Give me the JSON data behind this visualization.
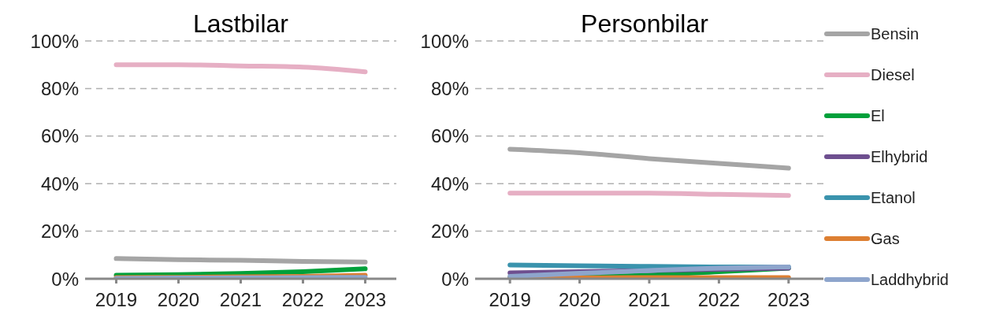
{
  "chart_data": [
    {
      "type": "line",
      "title": "Lastbilar",
      "categories": [
        "2019",
        "2020",
        "2021",
        "2022",
        "2023"
      ],
      "ylim": [
        0,
        100
      ],
      "yticks": [
        {
          "value": 0,
          "label": "0%"
        },
        {
          "value": 20,
          "label": "20%"
        },
        {
          "value": 40,
          "label": "40%"
        },
        {
          "value": 60,
          "label": "60%"
        },
        {
          "value": 80,
          "label": "80%"
        },
        {
          "value": 100,
          "label": "100%"
        }
      ],
      "grid": "y",
      "legend": false,
      "marker": "none",
      "series": [
        {
          "color": "#a5a5a5",
          "values": [
            8.5,
            8,
            7.8,
            7.3,
            7
          ]
        },
        {
          "color": "#e6afc4",
          "values": [
            90,
            90,
            89.5,
            89,
            87
          ]
        },
        {
          "color": "#00a03a",
          "values": [
            1.5,
            1.7,
            2.2,
            3,
            4.2
          ]
        },
        {
          "color": "#dd7f32",
          "values": [
            0.5,
            0.6,
            0.8,
            1,
            1.5
          ]
        },
        {
          "color": "#8ea5cc",
          "values": [
            0.2,
            0.3,
            0.4,
            0.5,
            0.6
          ]
        }
      ]
    },
    {
      "type": "line",
      "title": "Personbilar",
      "categories": [
        "2019",
        "2020",
        "2021",
        "2022",
        "2023"
      ],
      "ylim": [
        0,
        100
      ],
      "yticks": [
        {
          "value": 0,
          "label": "0%"
        },
        {
          "value": 20,
          "label": "20%"
        },
        {
          "value": 40,
          "label": "40%"
        },
        {
          "value": 60,
          "label": "60%"
        },
        {
          "value": 80,
          "label": "80%"
        },
        {
          "value": 100,
          "label": "100%"
        }
      ],
      "grid": "y",
      "legend": "right",
      "marker": "none",
      "series": [
        {
          "name": "Bensin",
          "color": "#a5a5a5",
          "values": [
            54.5,
            53,
            50.5,
            48.5,
            46.5
          ]
        },
        {
          "name": "Diesel",
          "color": "#e6afc4",
          "values": [
            36,
            36,
            36,
            35.5,
            35
          ]
        },
        {
          "name": "El",
          "color": "#00a03a",
          "values": [
            0.5,
            1,
            1.5,
            3,
            4.5
          ]
        },
        {
          "name": "Elhybrid",
          "color": "#6e4f8f",
          "values": [
            2.5,
            3,
            3.5,
            4,
            4.5
          ]
        },
        {
          "name": "Etanol",
          "color": "#3a93ad",
          "values": [
            5.8,
            5.5,
            5.2,
            5,
            5
          ]
        },
        {
          "name": "Gas",
          "color": "#dd7f32",
          "values": [
            0.3,
            0.4,
            0.5,
            0.5,
            0.5
          ]
        },
        {
          "name": "Laddhybrid",
          "color": "#8ea5cc",
          "values": [
            1,
            2.3,
            3.5,
            4.5,
            5
          ]
        }
      ]
    }
  ]
}
